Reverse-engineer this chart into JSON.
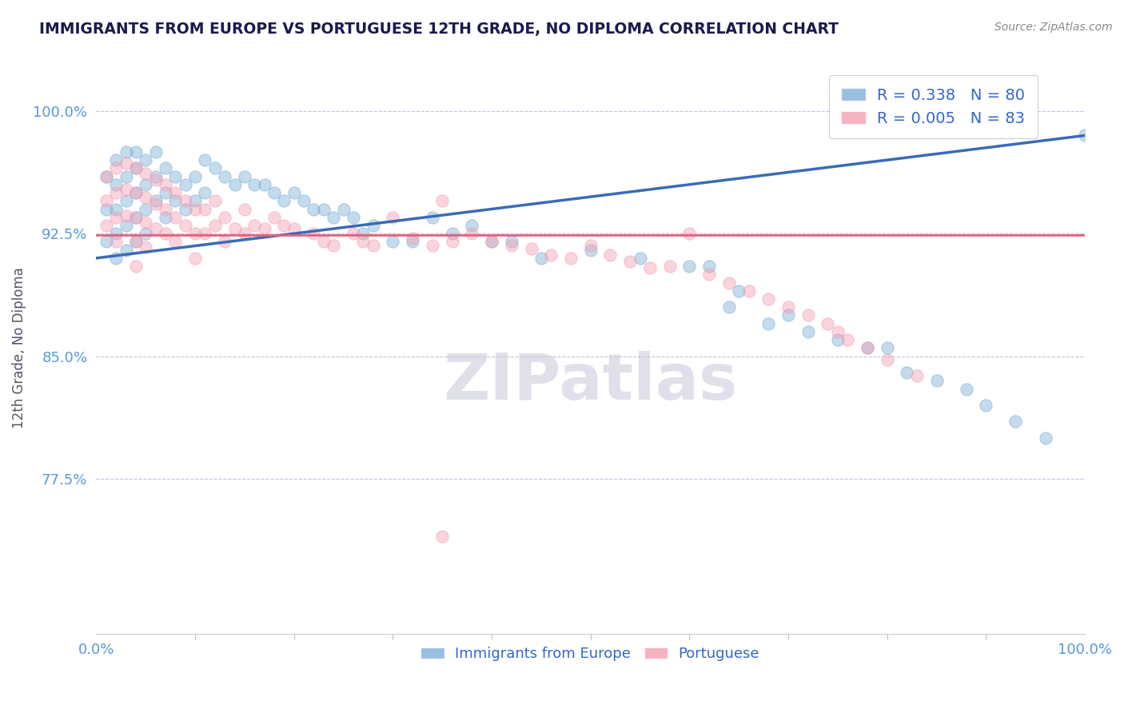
{
  "title": "IMMIGRANTS FROM EUROPE VS PORTUGUESE 12TH GRADE, NO DIPLOMA CORRELATION CHART",
  "source_text": "Source: ZipAtlas.com",
  "ylabel_left": "12th Grade, No Diploma",
  "xlim": [
    0.0,
    1.0
  ],
  "ylim": [
    0.68,
    1.03
  ],
  "blue_R": 0.338,
  "blue_N": 80,
  "pink_R": 0.005,
  "pink_N": 83,
  "blue_color": "#7EB0D5",
  "pink_color": "#F4A0B5",
  "blue_line_color": "#3A6BB5",
  "pink_line_color": "#E8607A",
  "title_color": "#1a1a4e",
  "source_color": "#888888",
  "tick_color": "#5599DD",
  "grid_color": "#BBBBDD",
  "watermark_color": "#CCCCDD",
  "legend_text_color": "#3366CC",
  "blue_scatter_x": [
    0.01,
    0.01,
    0.01,
    0.02,
    0.02,
    0.02,
    0.02,
    0.02,
    0.03,
    0.03,
    0.03,
    0.03,
    0.03,
    0.04,
    0.04,
    0.04,
    0.04,
    0.04,
    0.05,
    0.05,
    0.05,
    0.05,
    0.06,
    0.06,
    0.06,
    0.07,
    0.07,
    0.07,
    0.08,
    0.08,
    0.09,
    0.09,
    0.1,
    0.1,
    0.11,
    0.11,
    0.12,
    0.13,
    0.14,
    0.15,
    0.16,
    0.17,
    0.18,
    0.19,
    0.2,
    0.21,
    0.22,
    0.23,
    0.24,
    0.25,
    0.26,
    0.27,
    0.28,
    0.3,
    0.32,
    0.34,
    0.36,
    0.38,
    0.4,
    0.42,
    0.45,
    0.5,
    0.55,
    0.6,
    0.62,
    0.64,
    0.65,
    0.68,
    0.7,
    0.72,
    0.75,
    0.78,
    0.8,
    0.82,
    0.85,
    0.88,
    0.9,
    0.93,
    0.96,
    1.0
  ],
  "blue_scatter_y": [
    0.96,
    0.94,
    0.92,
    0.97,
    0.955,
    0.94,
    0.925,
    0.91,
    0.975,
    0.96,
    0.945,
    0.93,
    0.915,
    0.975,
    0.965,
    0.95,
    0.935,
    0.92,
    0.97,
    0.955,
    0.94,
    0.925,
    0.975,
    0.96,
    0.945,
    0.965,
    0.95,
    0.935,
    0.96,
    0.945,
    0.955,
    0.94,
    0.96,
    0.945,
    0.97,
    0.95,
    0.965,
    0.96,
    0.955,
    0.96,
    0.955,
    0.955,
    0.95,
    0.945,
    0.95,
    0.945,
    0.94,
    0.94,
    0.935,
    0.94,
    0.935,
    0.925,
    0.93,
    0.92,
    0.92,
    0.935,
    0.925,
    0.93,
    0.92,
    0.92,
    0.91,
    0.915,
    0.91,
    0.905,
    0.905,
    0.88,
    0.89,
    0.87,
    0.875,
    0.865,
    0.86,
    0.855,
    0.855,
    0.84,
    0.835,
    0.83,
    0.82,
    0.81,
    0.8,
    0.985
  ],
  "pink_scatter_x": [
    0.01,
    0.01,
    0.01,
    0.02,
    0.02,
    0.02,
    0.02,
    0.03,
    0.03,
    0.03,
    0.04,
    0.04,
    0.04,
    0.04,
    0.04,
    0.05,
    0.05,
    0.05,
    0.05,
    0.06,
    0.06,
    0.06,
    0.07,
    0.07,
    0.07,
    0.08,
    0.08,
    0.08,
    0.09,
    0.09,
    0.1,
    0.1,
    0.1,
    0.11,
    0.11,
    0.12,
    0.12,
    0.13,
    0.13,
    0.14,
    0.15,
    0.15,
    0.16,
    0.17,
    0.18,
    0.19,
    0.2,
    0.22,
    0.23,
    0.24,
    0.26,
    0.27,
    0.28,
    0.3,
    0.32,
    0.34,
    0.35,
    0.36,
    0.38,
    0.4,
    0.42,
    0.44,
    0.46,
    0.48,
    0.5,
    0.52,
    0.54,
    0.56,
    0.58,
    0.6,
    0.62,
    0.64,
    0.66,
    0.68,
    0.7,
    0.72,
    0.74,
    0.75,
    0.76,
    0.78,
    0.8,
    0.83,
    0.35
  ],
  "pink_scatter_y": [
    0.96,
    0.945,
    0.93,
    0.965,
    0.95,
    0.935,
    0.92,
    0.968,
    0.952,
    0.936,
    0.965,
    0.95,
    0.935,
    0.92,
    0.905,
    0.962,
    0.947,
    0.932,
    0.917,
    0.958,
    0.943,
    0.928,
    0.955,
    0.94,
    0.925,
    0.95,
    0.935,
    0.92,
    0.945,
    0.93,
    0.94,
    0.925,
    0.91,
    0.94,
    0.925,
    0.945,
    0.93,
    0.935,
    0.92,
    0.928,
    0.94,
    0.925,
    0.93,
    0.928,
    0.935,
    0.93,
    0.928,
    0.925,
    0.92,
    0.918,
    0.925,
    0.92,
    0.918,
    0.935,
    0.922,
    0.918,
    0.945,
    0.92,
    0.925,
    0.92,
    0.918,
    0.916,
    0.912,
    0.91,
    0.918,
    0.912,
    0.908,
    0.904,
    0.905,
    0.925,
    0.9,
    0.895,
    0.89,
    0.885,
    0.88,
    0.875,
    0.87,
    0.865,
    0.86,
    0.855,
    0.848,
    0.838,
    0.74
  ]
}
